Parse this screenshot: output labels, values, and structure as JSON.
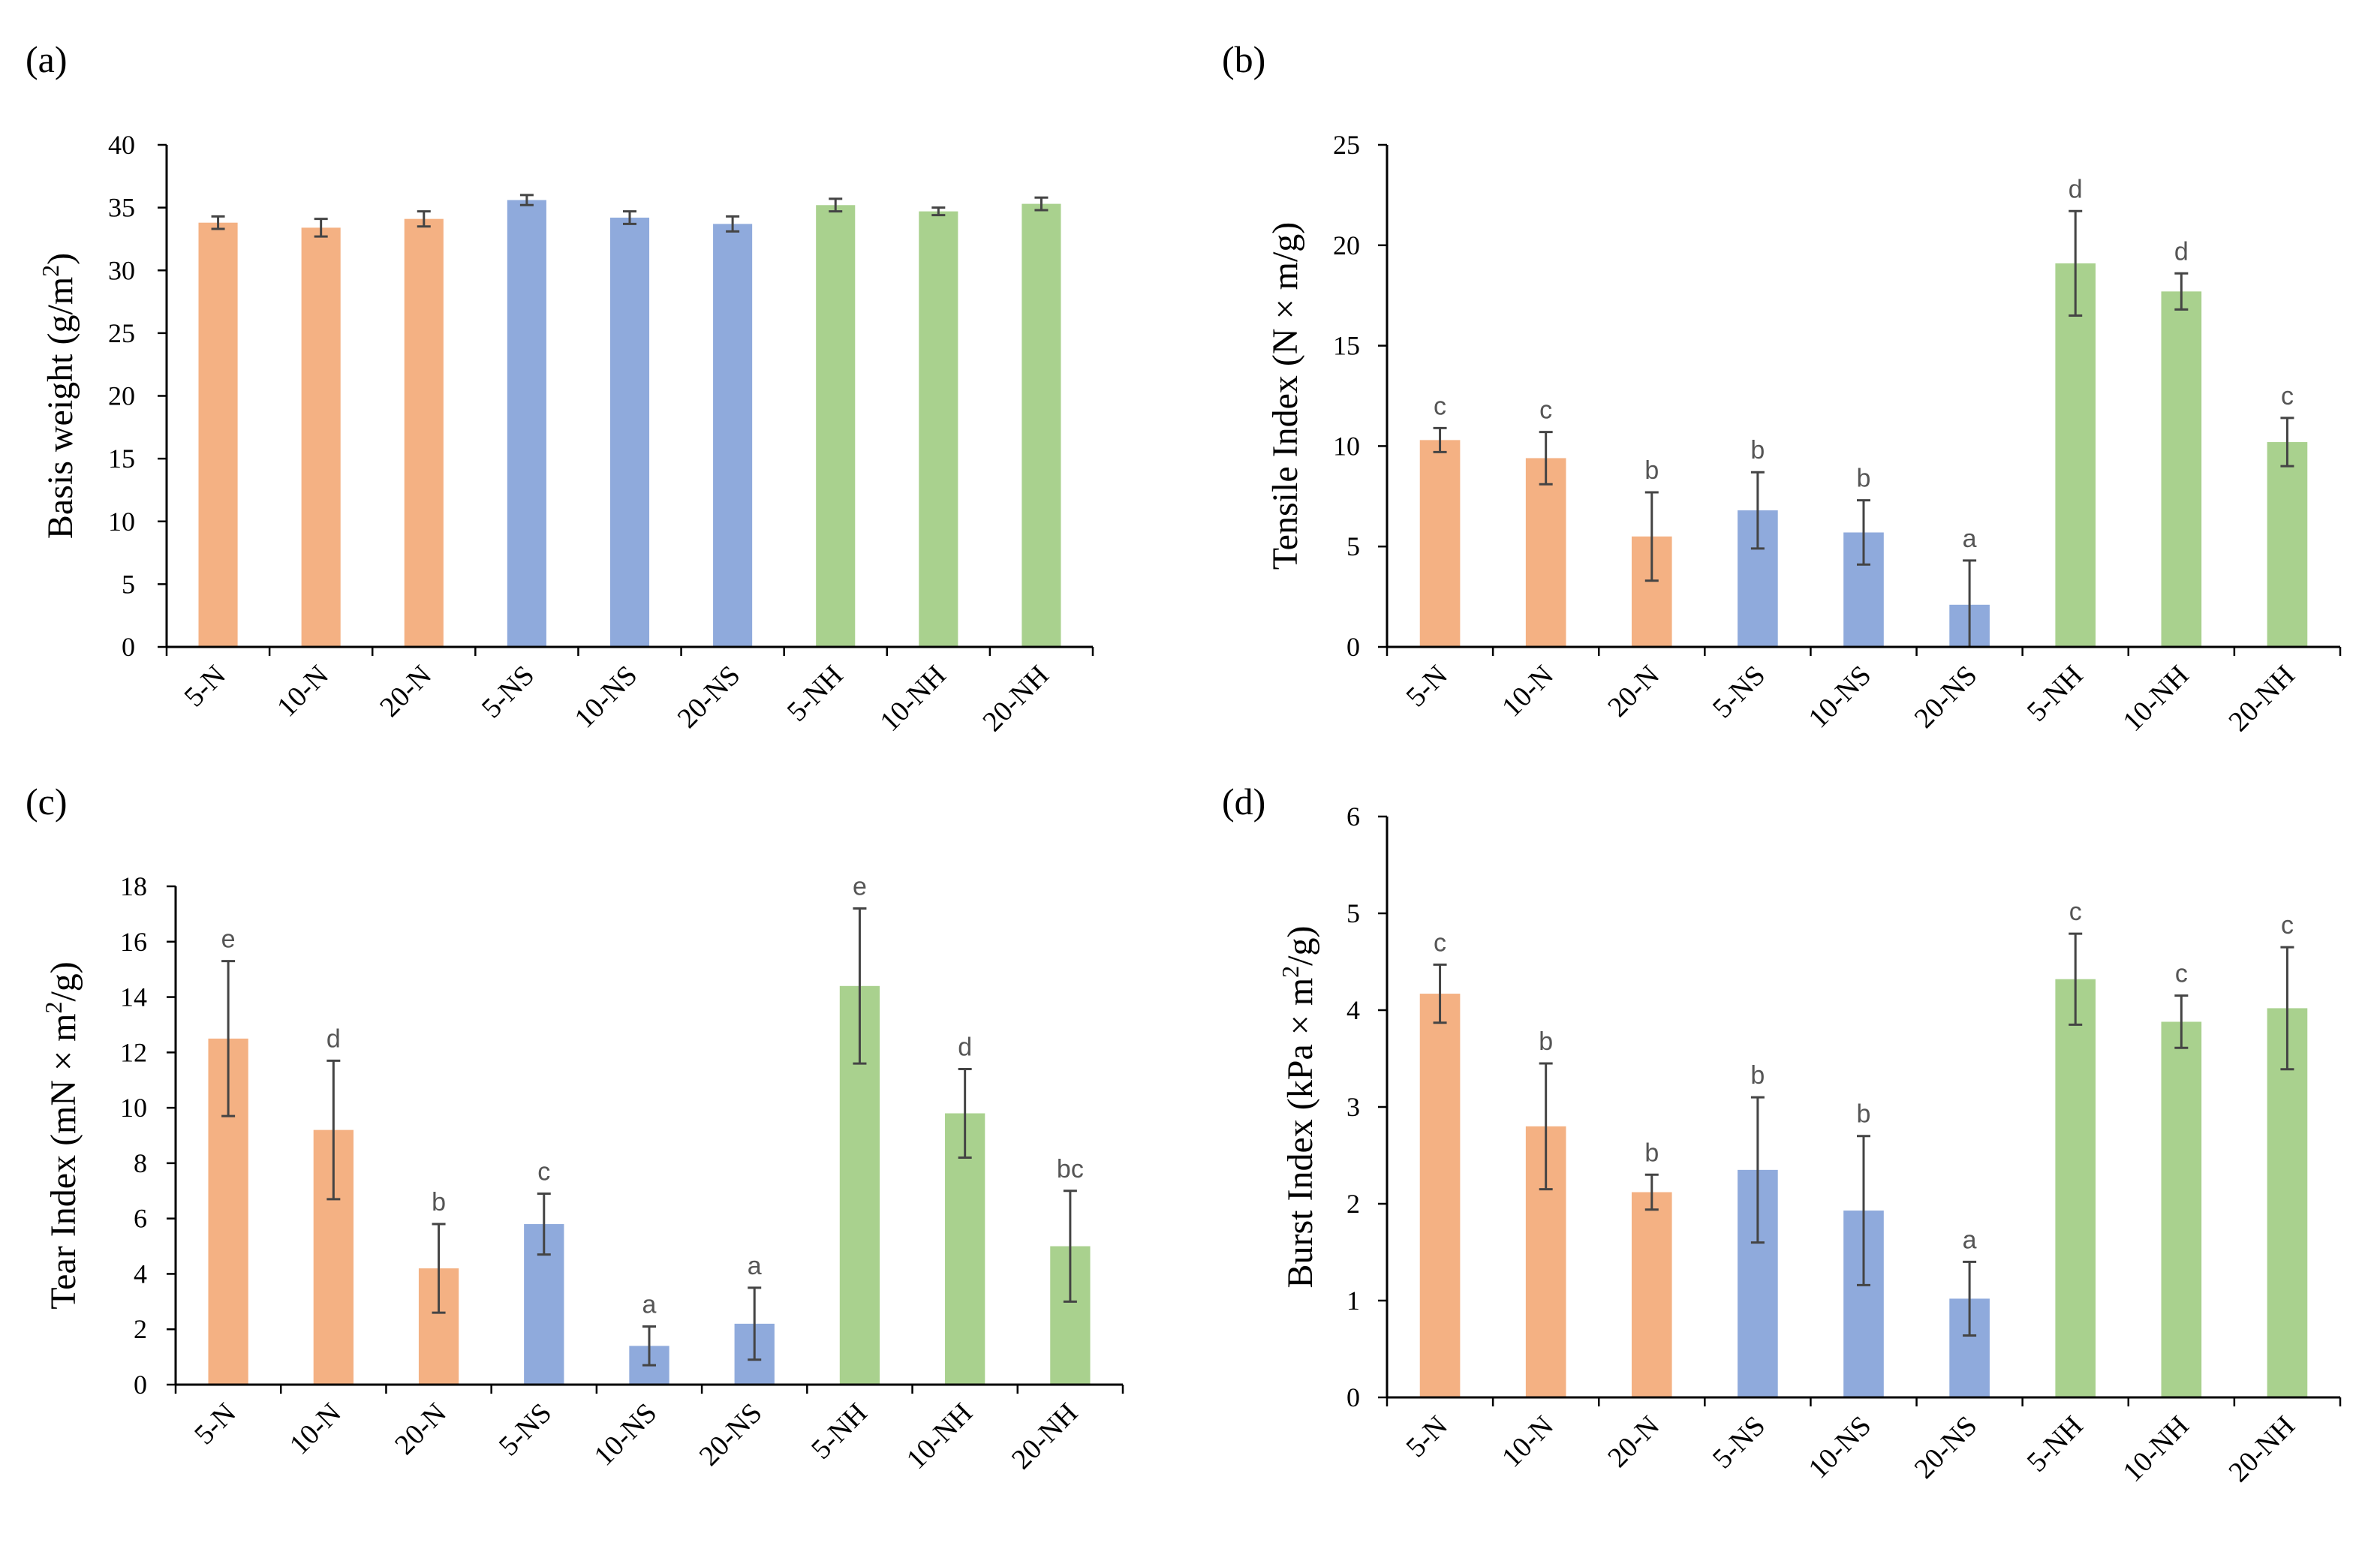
{
  "colors": {
    "N": "#f4b183",
    "NS": "#8faadc",
    "NH": "#a9d18e"
  },
  "chart_data": [
    {
      "type": "bar",
      "panel": "(a)",
      "categories": [
        "5-N",
        "10-N",
        "20-N",
        "5-NS",
        "10-NS",
        "20-NS",
        "5-NH",
        "10-NH",
        "20-NH"
      ],
      "groups": [
        "N",
        "N",
        "N",
        "NS",
        "NS",
        "NS",
        "NH",
        "NH",
        "NH"
      ],
      "values": [
        33.8,
        33.4,
        34.1,
        35.6,
        34.2,
        33.7,
        35.2,
        34.7,
        35.3
      ],
      "errors": [
        0.5,
        0.7,
        0.6,
        0.4,
        0.5,
        0.6,
        0.5,
        0.3,
        0.5
      ],
      "letters": [],
      "ylabel_pre": "Basis weight (g/m",
      "ylabel_sup": "2",
      "ylabel_post": ")",
      "ylim": [
        0,
        40
      ],
      "yticks": [
        "0",
        "5",
        "10",
        "15",
        "20",
        "25",
        "30",
        "35",
        "40"
      ],
      "grid": false
    },
    {
      "type": "bar",
      "panel": "(b)",
      "categories": [
        "5-N",
        "10-N",
        "20-N",
        "5-NS",
        "10-NS",
        "20-NS",
        "5-NH",
        "10-NH",
        "20-NH"
      ],
      "groups": [
        "N",
        "N",
        "N",
        "NS",
        "NS",
        "NS",
        "NH",
        "NH",
        "NH"
      ],
      "values": [
        10.3,
        9.4,
        5.5,
        6.8,
        5.7,
        2.1,
        19.1,
        17.7,
        10.2
      ],
      "errors": [
        0.6,
        1.3,
        2.2,
        1.9,
        1.6,
        2.2,
        2.6,
        0.9,
        1.2
      ],
      "letters": [
        "c",
        "c",
        "b",
        "b",
        "b",
        "a",
        "d",
        "d",
        "c"
      ],
      "ylabel_pre": "Tensile Index (N × m/g)",
      "ylabel_sup": "",
      "ylabel_post": "",
      "ylim": [
        0,
        25
      ],
      "yticks": [
        "0",
        "5",
        "10",
        "15",
        "20",
        "25"
      ],
      "grid": false
    },
    {
      "type": "bar",
      "panel": "(c)",
      "categories": [
        "5-N",
        "10-N",
        "20-N",
        "5-NS",
        "10-NS",
        "20-NS",
        "5-NH",
        "10-NH",
        "20-NH"
      ],
      "groups": [
        "N",
        "N",
        "N",
        "NS",
        "NS",
        "NS",
        "NH",
        "NH",
        "NH"
      ],
      "values": [
        12.5,
        9.2,
        4.2,
        5.8,
        1.4,
        2.2,
        14.4,
        9.8,
        5.0
      ],
      "errors": [
        2.8,
        2.5,
        1.6,
        1.1,
        0.7,
        1.3,
        2.8,
        1.6,
        2.0
      ],
      "letters": [
        "e",
        "d",
        "b",
        "c",
        "a",
        "a",
        "e",
        "d",
        "bc"
      ],
      "ylabel_pre": "Tear Index (mN × m",
      "ylabel_sup": "2",
      "ylabel_post": "/g)",
      "ylim": [
        0,
        18
      ],
      "yticks": [
        "0",
        "2",
        "4",
        "6",
        "8",
        "10",
        "12",
        "14",
        "16",
        "18"
      ],
      "grid": false
    },
    {
      "type": "bar",
      "panel": "(d)",
      "categories": [
        "5-N",
        "10-N",
        "20-N",
        "5-NS",
        "10-NS",
        "20-NS",
        "5-NH",
        "10-NH",
        "20-NH"
      ],
      "groups": [
        "N",
        "N",
        "N",
        "NS",
        "NS",
        "NS",
        "NH",
        "NH",
        "NH"
      ],
      "values": [
        4.17,
        2.8,
        2.12,
        2.35,
        1.93,
        1.02,
        4.32,
        3.88,
        4.02
      ],
      "errors": [
        0.3,
        0.65,
        0.18,
        0.75,
        0.77,
        0.38,
        0.47,
        0.27,
        0.63
      ],
      "letters": [
        "c",
        "b",
        "b",
        "b",
        "b",
        "a",
        "c",
        "c",
        "c"
      ],
      "ylabel_pre": "Burst Index (kPa × m",
      "ylabel_sup": "2",
      "ylabel_post": "/g)",
      "ylim": [
        0,
        6
      ],
      "yticks": [
        "0",
        "1",
        "2",
        "3",
        "4",
        "5",
        "6"
      ],
      "grid": false
    }
  ]
}
